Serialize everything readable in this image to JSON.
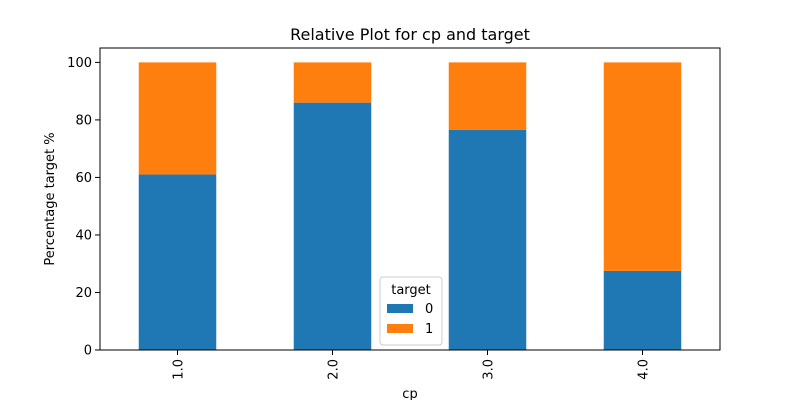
{
  "chart_data": {
    "type": "bar",
    "stacked": true,
    "title": "Relative Plot for cp and target",
    "xlabel": "cp",
    "ylabel": "Percentage target %",
    "categories": [
      "1.0",
      "2.0",
      "3.0",
      "4.0"
    ],
    "ylim": [
      0,
      105
    ],
    "yticks": [
      "0",
      "20",
      "40",
      "60",
      "80",
      "100"
    ],
    "series": [
      {
        "name": "0",
        "values": [
          61.0,
          86.0,
          76.5,
          27.5
        ],
        "color": "#1f77b4"
      },
      {
        "name": "1",
        "values": [
          39.0,
          14.0,
          23.5,
          72.5
        ],
        "color": "#ff7f0e"
      }
    ],
    "legend": {
      "title": "target",
      "placement": "lower-center"
    },
    "grid": false
  }
}
